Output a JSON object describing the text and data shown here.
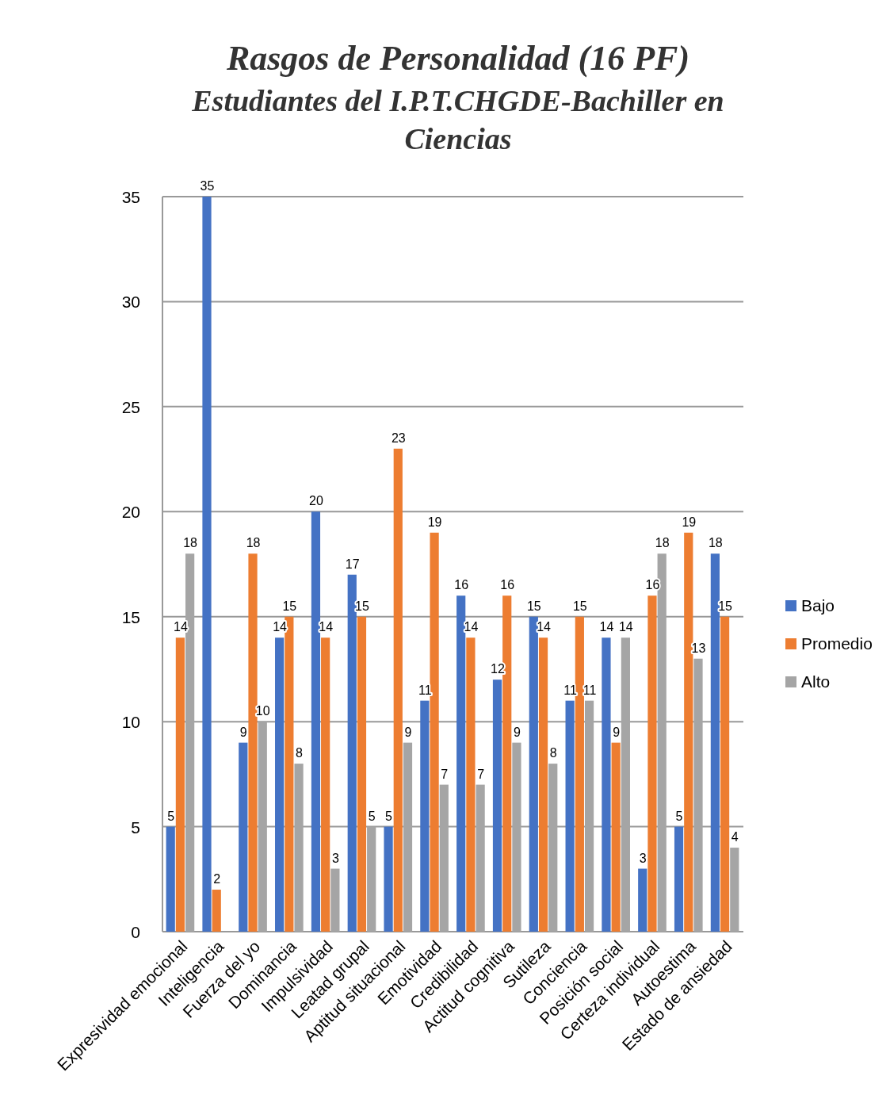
{
  "chart_data": {
    "type": "bar",
    "title": "Rasgos de Personalidad  (16 PF)",
    "subtitle": "Estudiantes del I.P.T.CHGDE-Bachiller en Ciencias",
    "categories": [
      "Expresividad emocional",
      "Inteligencia",
      "Fuerza del yo",
      "Dominancia",
      "Impulsividad",
      "Leatad grupal",
      "Aptitud situacional",
      "Emotividad",
      "Credibilidad",
      "Actitud cognitiva",
      "Sutileza",
      "Conciencia",
      "Posición social",
      "Certeza individual",
      "Autoestima",
      "Estado de ansiedad"
    ],
    "series": [
      {
        "name": "Bajo",
        "color": "#4472c4",
        "values": [
          5,
          35,
          9,
          14,
          20,
          17,
          5,
          11,
          16,
          12,
          15,
          11,
          14,
          3,
          5,
          18
        ]
      },
      {
        "name": "Promedio",
        "color": "#ed7d31",
        "values": [
          14,
          2,
          18,
          15,
          14,
          15,
          23,
          19,
          14,
          16,
          14,
          15,
          9,
          16,
          19,
          15
        ]
      },
      {
        "name": "Alto",
        "color": "#a5a5a5",
        "values": [
          18,
          null,
          10,
          8,
          3,
          5,
          9,
          7,
          7,
          9,
          8,
          11,
          14,
          18,
          13,
          4
        ]
      }
    ],
    "ylim": [
      0,
      35
    ],
    "yticks": [
      0,
      5,
      10,
      15,
      20,
      25,
      30,
      35
    ],
    "grid": "y",
    "legend": "right",
    "data_labels": true
  }
}
